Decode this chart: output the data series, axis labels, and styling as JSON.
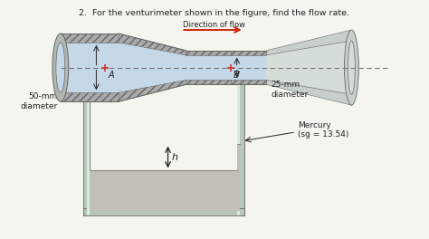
{
  "title": "2.  For the venturimeter shown in the figure, find the flow rate.",
  "direction_label": "Direction of flow",
  "label_A": "A",
  "label_B": "B",
  "label_50mm": "50-mm\ndiameter",
  "label_25mm": "25-mm\ndiameter",
  "label_mercury": "Mercury\n(sg = 13.54)",
  "label_h": "h",
  "bg_color": "#f5f5f0",
  "pipe_fluid": "#c5d8e8",
  "pipe_wall": "#b0b8b0",
  "pipe_border": "#666666",
  "hatch_fill": "#aaaaaa",
  "manometer_fluid": "#d8ece0",
  "mercury_fill": "#c0c0b8",
  "mercury_line": "#888880",
  "arrow_color": "#cc2200",
  "dash_color": "#777777",
  "text_color": "#222222",
  "right_cone_fill": "#c8d0cc",
  "right_cone_fluid": "#d5ddd8"
}
